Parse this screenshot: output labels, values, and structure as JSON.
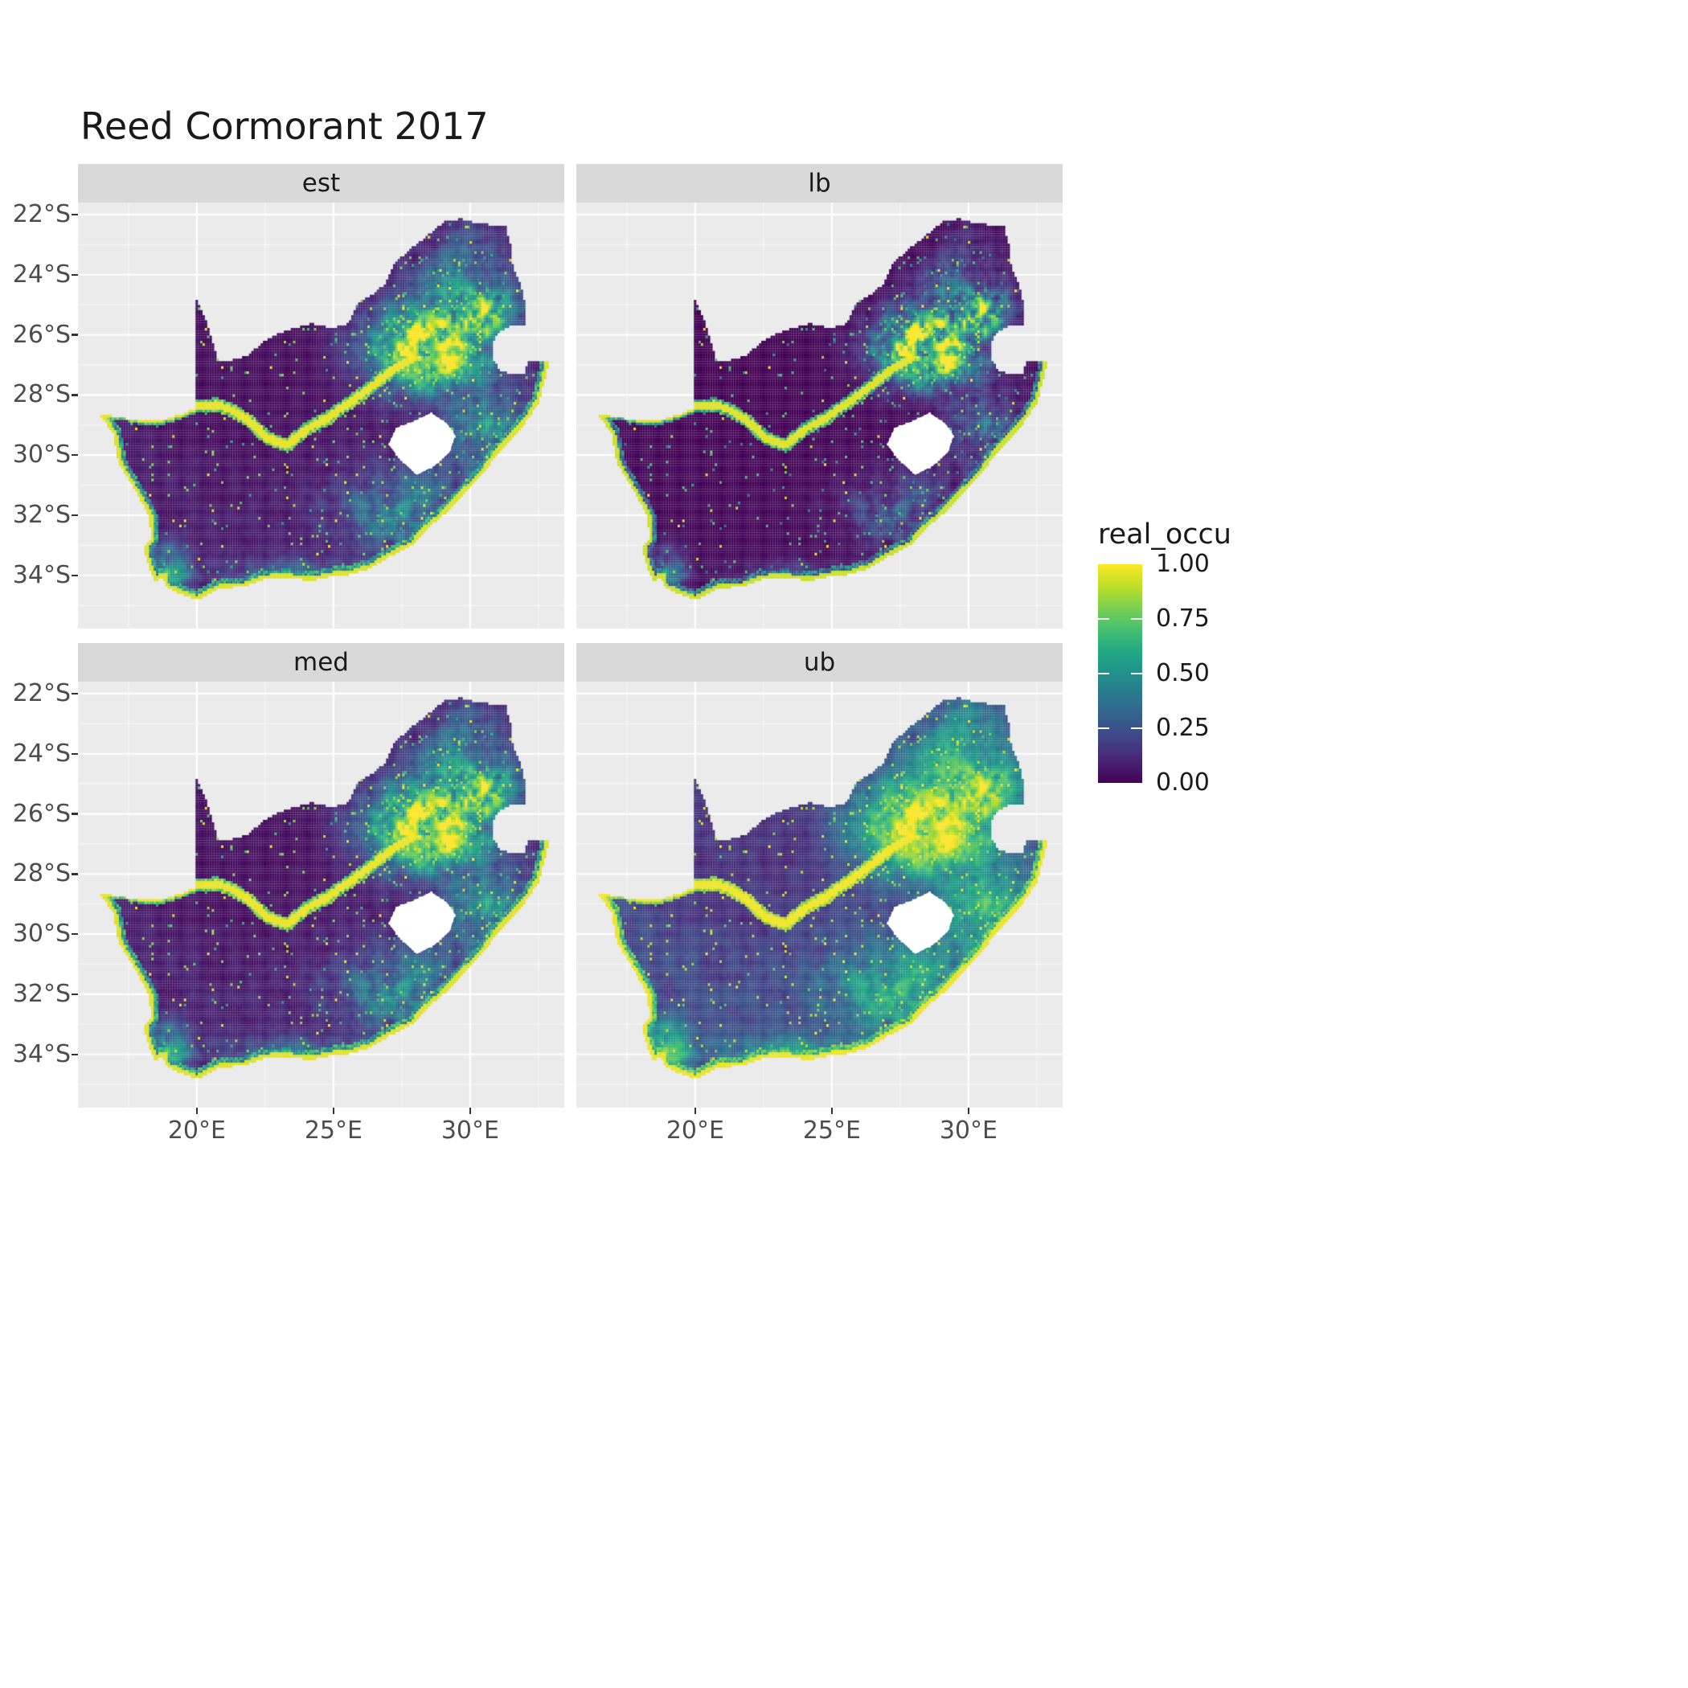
{
  "title": "Reed Cormorant 2017",
  "chart_data": {
    "type": "heatmap",
    "subtype": "faceted_raster_occupancy_map",
    "region": "South Africa with Lesotho shown as an empty hole",
    "title": "Reed Cormorant 2017",
    "facets": [
      "est",
      "lb",
      "med",
      "ub"
    ],
    "legend": {
      "title": "real_occu",
      "tick_labels": [
        "1.00",
        "0.75",
        "0.50",
        "0.25",
        "0.00"
      ],
      "tick_values": [
        1.0,
        0.75,
        0.5,
        0.25,
        0.0
      ]
    },
    "x_axis": {
      "tick_labels": [
        "20°E",
        "25°E",
        "30°E"
      ],
      "tick_values": [
        20,
        25,
        30
      ]
    },
    "y_axis": {
      "tick_labels": [
        "22°S",
        "24°S",
        "26°S",
        "28°S",
        "30°S",
        "32°S",
        "34°S"
      ],
      "tick_values": [
        -22,
        -24,
        -26,
        -28,
        -30,
        -32,
        -34
      ]
    },
    "value_range": [
      0,
      1
    ],
    "palette": {
      "name": "viridis",
      "stops": [
        {
          "t": 0.0,
          "c": "#440154"
        },
        {
          "t": 0.1,
          "c": "#482475"
        },
        {
          "t": 0.2,
          "c": "#414487"
        },
        {
          "t": 0.3,
          "c": "#355f8d"
        },
        {
          "t": 0.4,
          "c": "#2a788e"
        },
        {
          "t": 0.5,
          "c": "#21918c"
        },
        {
          "t": 0.6,
          "c": "#22a884"
        },
        {
          "t": 0.7,
          "c": "#44bf70"
        },
        {
          "t": 0.8,
          "c": "#7ad151"
        },
        {
          "t": 0.9,
          "c": "#bddf26"
        },
        {
          "t": 1.0,
          "c": "#fde725"
        }
      ]
    },
    "colors": {
      "panel_bg": "#EBEBEB",
      "strip_bg": "#D9D9D9",
      "grid_major": "#FFFFFF",
      "axis_text": "#4D4D4D",
      "tick_mark": "#333333",
      "hole_fill": "#FFFFFF"
    },
    "pattern_description": "High occupancy (yellow) over the Gauteng/Mpumalanga highveld in the north-east, along the Orange and Vaal rivers, and in a thin fringe along the entire ocean coastline; moderate speckled occupancy (teal/green) over KwaZulu-Natal, the Eastern Cape and the south-western Cape; near-zero occupancy (dark purple) over the arid western and central interior. Facets lb (lower bound) darker, ub (upper bound) brighter than est/med.",
    "geometry": {
      "boundary": [
        [
          16.45,
          -28.63
        ],
        [
          17.2,
          -28.76
        ],
        [
          18.0,
          -28.87
        ],
        [
          18.75,
          -28.83
        ],
        [
          19.4,
          -28.66
        ],
        [
          19.98,
          -28.43
        ],
        [
          19.98,
          -27.3
        ],
        [
          19.98,
          -26.0
        ],
        [
          19.98,
          -24.77
        ],
        [
          20.35,
          -25.55
        ],
        [
          20.62,
          -26.35
        ],
        [
          20.78,
          -26.9
        ],
        [
          21.3,
          -26.84
        ],
        [
          21.9,
          -26.67
        ],
        [
          22.4,
          -26.25
        ],
        [
          22.9,
          -26.0
        ],
        [
          23.5,
          -25.8
        ],
        [
          24.2,
          -25.62
        ],
        [
          24.9,
          -25.78
        ],
        [
          25.55,
          -25.62
        ],
        [
          25.9,
          -24.95
        ],
        [
          26.45,
          -24.63
        ],
        [
          26.9,
          -24.3
        ],
        [
          27.2,
          -23.65
        ],
        [
          27.95,
          -23.05
        ],
        [
          28.6,
          -22.58
        ],
        [
          29.05,
          -22.23
        ],
        [
          29.65,
          -22.15
        ],
        [
          30.35,
          -22.3
        ],
        [
          31.3,
          -22.4
        ],
        [
          31.48,
          -23.0
        ],
        [
          31.56,
          -23.7
        ],
        [
          31.86,
          -24.3
        ],
        [
          31.99,
          -24.9
        ],
        [
          32.02,
          -25.64
        ],
        [
          31.4,
          -25.74
        ],
        [
          30.95,
          -26.0
        ],
        [
          30.79,
          -26.4
        ],
        [
          30.81,
          -26.85
        ],
        [
          31.15,
          -27.2
        ],
        [
          31.6,
          -27.33
        ],
        [
          31.97,
          -27.32
        ],
        [
          32.13,
          -26.86
        ],
        [
          32.89,
          -26.86
        ],
        [
          32.55,
          -28.2
        ],
        [
          32.0,
          -28.95
        ],
        [
          31.35,
          -29.6
        ],
        [
          31.05,
          -29.9
        ],
        [
          30.4,
          -30.7
        ],
        [
          29.9,
          -31.15
        ],
        [
          29.2,
          -31.85
        ],
        [
          28.3,
          -32.55
        ],
        [
          27.9,
          -33.0
        ],
        [
          27.0,
          -33.4
        ],
        [
          26.4,
          -33.75
        ],
        [
          25.65,
          -33.97
        ],
        [
          25.0,
          -34.02
        ],
        [
          24.2,
          -34.18
        ],
        [
          23.35,
          -34.1
        ],
        [
          22.5,
          -34.12
        ],
        [
          21.7,
          -34.38
        ],
        [
          20.9,
          -34.42
        ],
        [
          20.0,
          -34.82
        ],
        [
          19.35,
          -34.6
        ],
        [
          18.85,
          -34.38
        ],
        [
          18.78,
          -34.05
        ],
        [
          18.44,
          -34.2
        ],
        [
          18.3,
          -33.85
        ],
        [
          18.05,
          -33.15
        ],
        [
          18.32,
          -32.75
        ],
        [
          18.27,
          -32.05
        ],
        [
          17.85,
          -31.35
        ],
        [
          17.15,
          -30.3
        ],
        [
          16.95,
          -29.3
        ]
      ],
      "lesotho": [
        [
          28.57,
          -28.6
        ],
        [
          29.15,
          -28.95
        ],
        [
          29.45,
          -29.35
        ],
        [
          29.25,
          -29.9
        ],
        [
          28.7,
          -30.35
        ],
        [
          28.05,
          -30.66
        ],
        [
          27.45,
          -30.15
        ],
        [
          27.02,
          -29.65
        ],
        [
          27.3,
          -29.1
        ],
        [
          27.95,
          -28.88
        ]
      ],
      "coast": [
        [
          16.45,
          -28.63
        ],
        [
          16.95,
          -29.3
        ],
        [
          17.15,
          -30.3
        ],
        [
          17.85,
          -31.35
        ],
        [
          18.27,
          -32.05
        ],
        [
          18.32,
          -32.75
        ],
        [
          18.05,
          -33.15
        ],
        [
          18.3,
          -33.85
        ],
        [
          18.44,
          -34.2
        ],
        [
          18.78,
          -34.05
        ],
        [
          18.85,
          -34.38
        ],
        [
          19.35,
          -34.6
        ],
        [
          20.0,
          -34.82
        ],
        [
          20.9,
          -34.42
        ],
        [
          21.7,
          -34.38
        ],
        [
          22.5,
          -34.12
        ],
        [
          23.35,
          -34.1
        ],
        [
          24.2,
          -34.18
        ],
        [
          25.0,
          -34.02
        ],
        [
          25.65,
          -33.97
        ],
        [
          26.4,
          -33.75
        ],
        [
          27.0,
          -33.4
        ],
        [
          27.9,
          -33.0
        ],
        [
          28.3,
          -32.55
        ],
        [
          29.2,
          -31.85
        ],
        [
          29.9,
          -31.15
        ],
        [
          30.4,
          -30.7
        ],
        [
          31.05,
          -29.9
        ],
        [
          31.35,
          -29.6
        ],
        [
          32.0,
          -28.95
        ],
        [
          32.55,
          -28.2
        ],
        [
          32.89,
          -26.86
        ]
      ],
      "river": [
        [
          16.45,
          -28.63
        ],
        [
          17.3,
          -28.58
        ],
        [
          18.1,
          -28.82
        ],
        [
          19.0,
          -28.72
        ],
        [
          19.98,
          -28.38
        ],
        [
          20.7,
          -28.32
        ],
        [
          21.25,
          -28.5
        ],
        [
          21.9,
          -28.85
        ],
        [
          22.6,
          -29.45
        ],
        [
          23.3,
          -29.68
        ],
        [
          24.05,
          -29.12
        ],
        [
          24.75,
          -28.78
        ],
        [
          25.6,
          -28.25
        ],
        [
          26.5,
          -27.65
        ],
        [
          27.25,
          -27.1
        ],
        [
          27.95,
          -26.75
        ]
      ]
    }
  }
}
